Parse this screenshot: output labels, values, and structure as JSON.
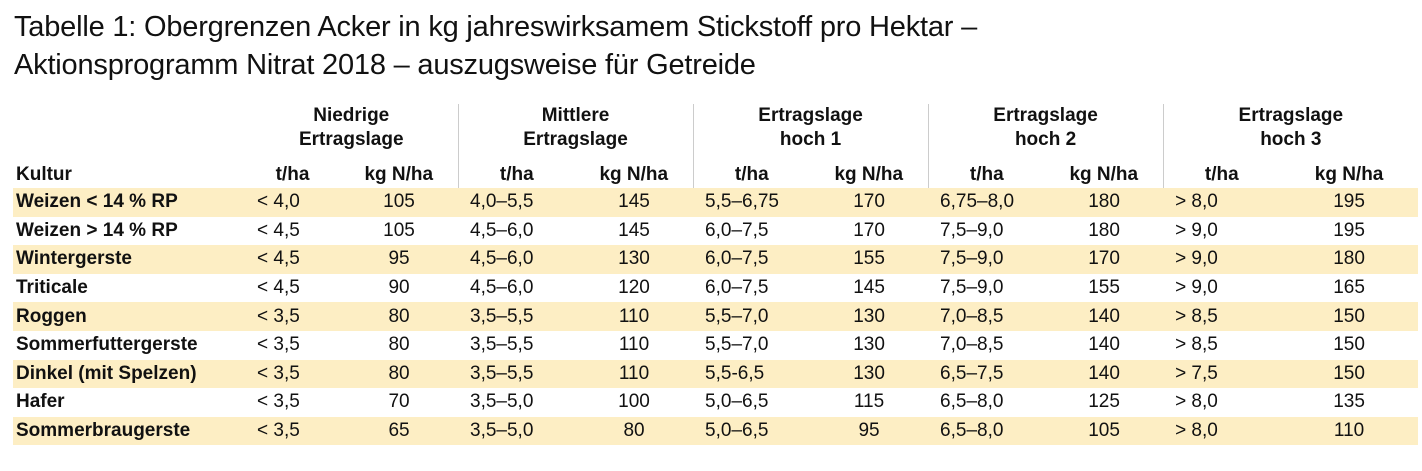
{
  "header": {
    "title_lines": [
      "Tabelle 1: Obergrenzen Acker in kg jahreswirksamem Stickstoff pro Hektar –",
      "Aktionsprogramm Nitrat 2018 – auszugsweise für Getreide"
    ]
  },
  "table": {
    "first_column": "Kultur",
    "units": [
      "t/ha",
      "kg N/ha"
    ],
    "groups": [
      [
        "Niedrige",
        "Ertragslage"
      ],
      [
        "Mittlere",
        "Ertragslage"
      ],
      [
        "Ertragslage",
        "hoch 1"
      ],
      [
        "Ertragslage",
        "hoch 2"
      ],
      [
        "Ertragslage",
        "hoch 3"
      ]
    ],
    "rows": [
      [
        "Weizen < 14 % RP",
        "< 4,0",
        105,
        "4,0–5,5",
        145,
        "5,5–6,75",
        170,
        "6,75–8,0",
        180,
        "> 8,0",
        195
      ],
      [
        "Weizen > 14 % RP",
        "< 4,5",
        105,
        "4,5–6,0",
        145,
        "6,0–7,5",
        170,
        "7,5–9,0",
        180,
        "> 9,0",
        195
      ],
      [
        "Wintergerste",
        "< 4,5",
        95,
        "4,5–6,0",
        130,
        "6,0–7,5",
        155,
        "7,5–9,0",
        170,
        "> 9,0",
        180
      ],
      [
        "Triticale",
        "< 4,5",
        90,
        "4,5–6,0",
        120,
        "6,0–7,5",
        145,
        "7,5–9,0",
        155,
        "> 9,0",
        165
      ],
      [
        "Roggen",
        "< 3,5",
        80,
        "3,5–5,5",
        110,
        "5,5–7,0",
        130,
        "7,0–8,5",
        140,
        "> 8,5",
        150
      ],
      [
        "Sommerfuttergerste",
        "< 3,5",
        80,
        "3,5–5,5",
        110,
        "5,5–7,0",
        130,
        "7,0–8,5",
        140,
        "> 8,5",
        150
      ],
      [
        "Dinkel (mit Spelzen)",
        "< 3,5",
        80,
        "3,5–5,5",
        110,
        "5,5-6,5",
        130,
        "6,5–7,5",
        140,
        "> 7,5",
        150
      ],
      [
        "Hafer",
        "< 3,5",
        70,
        "3,5–5,0",
        100,
        "5,0–6,5",
        115,
        "6,5–8,0",
        125,
        "> 8,0",
        135
      ],
      [
        "Sommerbraugerste",
        "< 3,5",
        65,
        "3,5–5,0",
        80,
        "5,0–6,5",
        95,
        "6,5–8,0",
        105,
        "> 8,0",
        110
      ]
    ]
  }
}
